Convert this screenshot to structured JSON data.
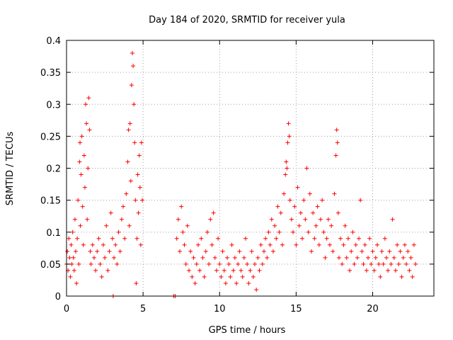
{
  "chart_data": {
    "type": "scatter",
    "title": "Day 184 of 2020, SRMTID for receiver yula",
    "xlabel": "GPS time / hours",
    "ylabel": "SRMTID / TECUs",
    "xlim": [
      0,
      24
    ],
    "ylim": [
      0,
      0.4
    ],
    "grid": true,
    "marker": "+",
    "x_ticks": [
      0,
      5,
      10,
      15,
      20
    ],
    "x_tick_labels": [
      "0",
      "5",
      "10",
      "15",
      "20"
    ],
    "y_ticks": [
      0,
      0.05,
      0.1,
      0.15,
      0.2,
      0.25,
      0.3,
      0.35,
      0.4
    ],
    "y_tick_labels": [
      "0",
      "0.05",
      "0.1",
      "0.15",
      "0.2",
      "0.25",
      "0.3",
      "0.35",
      "0.4"
    ],
    "series": [
      {
        "name": "SRMTID",
        "color": "#ff0000",
        "points": [
          [
            0.0,
            0.05
          ],
          [
            0.05,
            0.07
          ],
          [
            0.1,
            0.04
          ],
          [
            0.15,
            0.09
          ],
          [
            0.2,
            0.06
          ],
          [
            0.25,
            0.03
          ],
          [
            0.3,
            0.08
          ],
          [
            0.35,
            0.05
          ],
          [
            0.4,
            0.1
          ],
          [
            0.45,
            0.06
          ],
          [
            0.5,
            0.04
          ],
          [
            0.55,
            0.12
          ],
          [
            0.6,
            0.07
          ],
          [
            0.65,
            0.02
          ],
          [
            0.7,
            0.09
          ],
          [
            0.75,
            0.15
          ],
          [
            0.8,
            0.05
          ],
          [
            0.85,
            0.21
          ],
          [
            0.88,
            0.24
          ],
          [
            0.9,
            0.11
          ],
          [
            0.95,
            0.19
          ],
          [
            1.0,
            0.25
          ],
          [
            1.05,
            0.14
          ],
          [
            1.1,
            0.08
          ],
          [
            1.15,
            0.22
          ],
          [
            1.2,
            0.17
          ],
          [
            1.25,
            0.3
          ],
          [
            1.3,
            0.27
          ],
          [
            1.35,
            0.12
          ],
          [
            1.4,
            0.2
          ],
          [
            1.45,
            0.31
          ],
          [
            1.5,
            0.26
          ],
          [
            1.55,
            0.07
          ],
          [
            1.6,
            0.05
          ],
          [
            1.7,
            0.08
          ],
          [
            1.8,
            0.06
          ],
          [
            1.9,
            0.04
          ],
          [
            2.0,
            0.07
          ],
          [
            2.1,
            0.09
          ],
          [
            2.2,
            0.05
          ],
          [
            2.3,
            0.03
          ],
          [
            2.4,
            0.08
          ],
          [
            2.5,
            0.06
          ],
          [
            2.6,
            0.11
          ],
          [
            2.7,
            0.04
          ],
          [
            2.8,
            0.07
          ],
          [
            2.9,
            0.13
          ],
          [
            3.0,
            0.09
          ],
          [
            3.05,
            0.0
          ],
          [
            3.1,
            0.06
          ],
          [
            3.2,
            0.08
          ],
          [
            3.3,
            0.05
          ],
          [
            3.4,
            0.1
          ],
          [
            3.5,
            0.07
          ],
          [
            3.6,
            0.12
          ],
          [
            3.7,
            0.14
          ],
          [
            3.8,
            0.09
          ],
          [
            3.9,
            0.16
          ],
          [
            4.0,
            0.21
          ],
          [
            4.05,
            0.26
          ],
          [
            4.1,
            0.11
          ],
          [
            4.15,
            0.27
          ],
          [
            4.2,
            0.18
          ],
          [
            4.25,
            0.33
          ],
          [
            4.3,
            0.38
          ],
          [
            4.35,
            0.36
          ],
          [
            4.4,
            0.3
          ],
          [
            4.45,
            0.24
          ],
          [
            4.5,
            0.15
          ],
          [
            4.55,
            0.02
          ],
          [
            4.6,
            0.09
          ],
          [
            4.65,
            0.19
          ],
          [
            4.7,
            0.13
          ],
          [
            4.75,
            0.22
          ],
          [
            4.8,
            0.17
          ],
          [
            4.85,
            0.08
          ],
          [
            4.9,
            0.24
          ],
          [
            4.95,
            0.15
          ],
          [
            7.0,
            0.0
          ],
          [
            7.1,
            0.0
          ],
          [
            7.2,
            0.09
          ],
          [
            7.3,
            0.12
          ],
          [
            7.4,
            0.07
          ],
          [
            7.5,
            0.14
          ],
          [
            7.6,
            0.1
          ],
          [
            7.7,
            0.08
          ],
          [
            7.8,
            0.05
          ],
          [
            7.9,
            0.11
          ],
          [
            8.0,
            0.04
          ],
          [
            8.1,
            0.07
          ],
          [
            8.2,
            0.03
          ],
          [
            8.3,
            0.06
          ],
          [
            8.4,
            0.02
          ],
          [
            8.5,
            0.05
          ],
          [
            8.6,
            0.08
          ],
          [
            8.7,
            0.04
          ],
          [
            8.8,
            0.09
          ],
          [
            8.9,
            0.06
          ],
          [
            9.0,
            0.03
          ],
          [
            9.1,
            0.07
          ],
          [
            9.2,
            0.1
          ],
          [
            9.3,
            0.05
          ],
          [
            9.4,
            0.12
          ],
          [
            9.5,
            0.08
          ],
          [
            9.6,
            0.13
          ],
          [
            9.7,
            0.06
          ],
          [
            9.8,
            0.04
          ],
          [
            9.9,
            0.09
          ],
          [
            10.0,
            0.05
          ],
          [
            10.1,
            0.03
          ],
          [
            10.2,
            0.07
          ],
          [
            10.3,
            0.04
          ],
          [
            10.4,
            0.02
          ],
          [
            10.5,
            0.06
          ],
          [
            10.6,
            0.05
          ],
          [
            10.7,
            0.03
          ],
          [
            10.8,
            0.08
          ],
          [
            10.9,
            0.04
          ],
          [
            11.0,
            0.06
          ],
          [
            11.1,
            0.02
          ],
          [
            11.2,
            0.05
          ],
          [
            11.3,
            0.07
          ],
          [
            11.4,
            0.04
          ],
          [
            11.5,
            0.03
          ],
          [
            11.6,
            0.06
          ],
          [
            11.7,
            0.09
          ],
          [
            11.8,
            0.05
          ],
          [
            11.9,
            0.02
          ],
          [
            12.0,
            0.04
          ],
          [
            12.1,
            0.07
          ],
          [
            12.2,
            0.03
          ],
          [
            12.3,
            0.05
          ],
          [
            12.4,
            0.01
          ],
          [
            12.5,
            0.06
          ],
          [
            12.6,
            0.04
          ],
          [
            12.7,
            0.08
          ],
          [
            12.8,
            0.05
          ],
          [
            12.9,
            0.07
          ],
          [
            13.0,
            0.09
          ],
          [
            13.1,
            0.06
          ],
          [
            13.2,
            0.1
          ],
          [
            13.3,
            0.08
          ],
          [
            13.4,
            0.12
          ],
          [
            13.5,
            0.07
          ],
          [
            13.6,
            0.11
          ],
          [
            13.7,
            0.09
          ],
          [
            13.8,
            0.14
          ],
          [
            13.9,
            0.1
          ],
          [
            14.0,
            0.13
          ],
          [
            14.1,
            0.08
          ],
          [
            14.2,
            0.16
          ],
          [
            14.3,
            0.19
          ],
          [
            14.35,
            0.21
          ],
          [
            14.4,
            0.2
          ],
          [
            14.45,
            0.24
          ],
          [
            14.5,
            0.27
          ],
          [
            14.55,
            0.25
          ],
          [
            14.6,
            0.15
          ],
          [
            14.7,
            0.12
          ],
          [
            14.8,
            0.1
          ],
          [
            14.9,
            0.14
          ],
          [
            15.0,
            0.08
          ],
          [
            15.1,
            0.17
          ],
          [
            15.2,
            0.11
          ],
          [
            15.3,
            0.13
          ],
          [
            15.4,
            0.09
          ],
          [
            15.5,
            0.15
          ],
          [
            15.6,
            0.12
          ],
          [
            15.7,
            0.2
          ],
          [
            15.8,
            0.1
          ],
          [
            15.9,
            0.16
          ],
          [
            16.0,
            0.07
          ],
          [
            16.1,
            0.13
          ],
          [
            16.2,
            0.09
          ],
          [
            16.3,
            0.11
          ],
          [
            16.4,
            0.14
          ],
          [
            16.5,
            0.08
          ],
          [
            16.6,
            0.12
          ],
          [
            16.7,
            0.15
          ],
          [
            16.8,
            0.1
          ],
          [
            16.9,
            0.06
          ],
          [
            17.0,
            0.09
          ],
          [
            17.1,
            0.12
          ],
          [
            17.2,
            0.08
          ],
          [
            17.3,
            0.11
          ],
          [
            17.4,
            0.07
          ],
          [
            17.5,
            0.16
          ],
          [
            17.6,
            0.22
          ],
          [
            17.65,
            0.26
          ],
          [
            17.7,
            0.24
          ],
          [
            17.75,
            0.13
          ],
          [
            17.8,
            0.06
          ],
          [
            17.9,
            0.09
          ],
          [
            18.0,
            0.05
          ],
          [
            18.1,
            0.08
          ],
          [
            18.2,
            0.11
          ],
          [
            18.3,
            0.06
          ],
          [
            18.4,
            0.09
          ],
          [
            18.5,
            0.04
          ],
          [
            18.6,
            0.07
          ],
          [
            18.7,
            0.1
          ],
          [
            18.8,
            0.05
          ],
          [
            18.9,
            0.08
          ],
          [
            19.0,
            0.06
          ],
          [
            19.1,
            0.09
          ],
          [
            19.2,
            0.15
          ],
          [
            19.3,
            0.07
          ],
          [
            19.4,
            0.05
          ],
          [
            19.5,
            0.08
          ],
          [
            19.6,
            0.04
          ],
          [
            19.7,
            0.06
          ],
          [
            19.8,
            0.09
          ],
          [
            19.9,
            0.05
          ],
          [
            20.0,
            0.07
          ],
          [
            20.1,
            0.04
          ],
          [
            20.2,
            0.06
          ],
          [
            20.3,
            0.08
          ],
          [
            20.4,
            0.05
          ],
          [
            20.5,
            0.03
          ],
          [
            20.6,
            0.07
          ],
          [
            20.7,
            0.05
          ],
          [
            20.8,
            0.09
          ],
          [
            20.9,
            0.06
          ],
          [
            21.0,
            0.04
          ],
          [
            21.1,
            0.07
          ],
          [
            21.2,
            0.05
          ],
          [
            21.3,
            0.12
          ],
          [
            21.4,
            0.06
          ],
          [
            21.5,
            0.04
          ],
          [
            21.6,
            0.08
          ],
          [
            21.7,
            0.05
          ],
          [
            21.8,
            0.07
          ],
          [
            21.9,
            0.03
          ],
          [
            22.0,
            0.06
          ],
          [
            22.1,
            0.08
          ],
          [
            22.2,
            0.05
          ],
          [
            22.3,
            0.07
          ],
          [
            22.4,
            0.04
          ],
          [
            22.5,
            0.06
          ],
          [
            22.6,
            0.03
          ],
          [
            22.7,
            0.08
          ],
          [
            22.8,
            0.05
          ]
        ]
      }
    ]
  }
}
